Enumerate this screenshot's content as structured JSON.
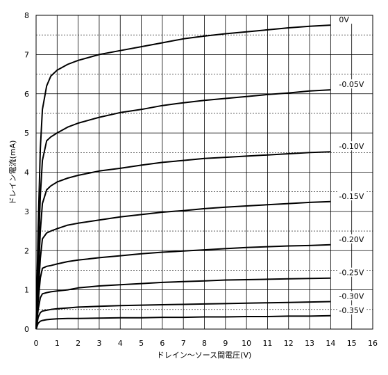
{
  "chart_data": {
    "type": "line",
    "title": "",
    "xlabel": "ドレイン～ソース間電圧(V)",
    "ylabel": "ドレイン電流(mA)",
    "xlim": [
      0,
      16
    ],
    "ylim": [
      0,
      8
    ],
    "x_ticks": [
      0,
      1,
      2,
      3,
      4,
      5,
      6,
      7,
      8,
      9,
      10,
      11,
      12,
      13,
      14,
      15,
      16
    ],
    "y_ticks": [
      0,
      1,
      2,
      3,
      4,
      5,
      6,
      7,
      8
    ],
    "grid": true,
    "minor_dashed_y": [
      0.5,
      1.5,
      2.5,
      3.5,
      4.5,
      5.5,
      6.5,
      7.5
    ],
    "line_color": "#000000",
    "x": [
      0,
      0.1,
      0.2,
      0.3,
      0.5,
      0.7,
      1,
      1.5,
      2,
      3,
      4,
      5,
      6,
      7,
      8,
      9,
      10,
      11,
      12,
      13,
      14
    ],
    "series": [
      {
        "label": "0V",
        "values": [
          0,
          2.6,
          4.6,
          5.6,
          6.2,
          6.45,
          6.6,
          6.75,
          6.85,
          7.0,
          7.1,
          7.2,
          7.3,
          7.4,
          7.47,
          7.53,
          7.58,
          7.63,
          7.68,
          7.72,
          7.75
        ]
      },
      {
        "label": "-0.05V",
        "values": [
          0,
          1.8,
          3.4,
          4.3,
          4.8,
          4.9,
          5.0,
          5.15,
          5.25,
          5.4,
          5.52,
          5.6,
          5.7,
          5.77,
          5.83,
          5.88,
          5.93,
          5.98,
          6.02,
          6.07,
          6.1
        ]
      },
      {
        "label": "-0.10V",
        "values": [
          0,
          1.2,
          2.5,
          3.2,
          3.55,
          3.65,
          3.75,
          3.85,
          3.92,
          4.03,
          4.1,
          4.18,
          4.25,
          4.3,
          4.35,
          4.38,
          4.41,
          4.44,
          4.47,
          4.5,
          4.52
        ]
      },
      {
        "label": "-0.15V",
        "values": [
          0,
          0.9,
          1.8,
          2.3,
          2.45,
          2.5,
          2.56,
          2.65,
          2.7,
          2.78,
          2.86,
          2.92,
          2.98,
          3.02,
          3.07,
          3.11,
          3.14,
          3.17,
          3.2,
          3.23,
          3.25
        ]
      },
      {
        "label": "-0.20V",
        "values": [
          0,
          0.7,
          1.3,
          1.55,
          1.6,
          1.62,
          1.66,
          1.72,
          1.76,
          1.82,
          1.87,
          1.92,
          1.96,
          1.99,
          2.02,
          2.05,
          2.08,
          2.1,
          2.12,
          2.13,
          2.15
        ]
      },
      {
        "label": "-0.25V",
        "values": [
          0,
          0.5,
          0.8,
          0.9,
          0.93,
          0.95,
          0.97,
          1.0,
          1.05,
          1.1,
          1.13,
          1.16,
          1.19,
          1.21,
          1.23,
          1.25,
          1.26,
          1.27,
          1.28,
          1.29,
          1.3
        ]
      },
      {
        "label": "-0.30V",
        "values": [
          0,
          0.3,
          0.42,
          0.46,
          0.48,
          0.5,
          0.52,
          0.54,
          0.56,
          0.58,
          0.6,
          0.61,
          0.62,
          0.63,
          0.64,
          0.65,
          0.66,
          0.67,
          0.68,
          0.69,
          0.7
        ]
      },
      {
        "label": "-0.35V",
        "values": [
          0,
          0.15,
          0.2,
          0.22,
          0.24,
          0.25,
          0.26,
          0.27,
          0.27,
          0.28,
          0.29,
          0.29,
          0.3,
          0.3,
          0.31,
          0.31,
          0.32,
          0.32,
          0.33,
          0.33,
          0.34
        ]
      }
    ]
  }
}
